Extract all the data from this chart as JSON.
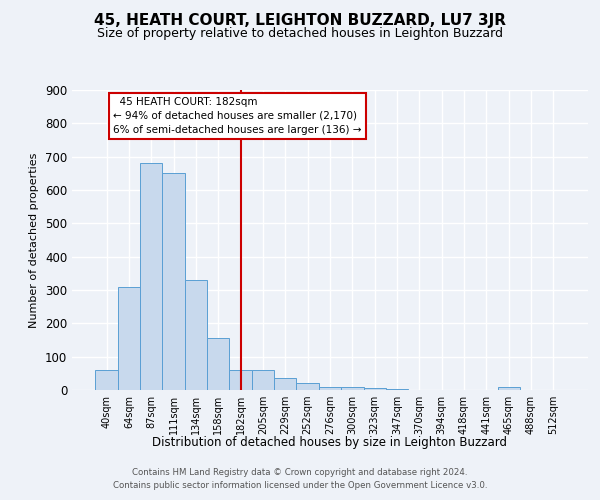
{
  "title": "45, HEATH COURT, LEIGHTON BUZZARD, LU7 3JR",
  "subtitle": "Size of property relative to detached houses in Leighton Buzzard",
  "xlabel": "Distribution of detached houses by size in Leighton Buzzard",
  "ylabel": "Number of detached properties",
  "footnote1": "Contains HM Land Registry data © Crown copyright and database right 2024.",
  "footnote2": "Contains public sector information licensed under the Open Government Licence v3.0.",
  "categories": [
    "40sqm",
    "64sqm",
    "87sqm",
    "111sqm",
    "134sqm",
    "158sqm",
    "182sqm",
    "205sqm",
    "229sqm",
    "252sqm",
    "276sqm",
    "300sqm",
    "323sqm",
    "347sqm",
    "370sqm",
    "394sqm",
    "418sqm",
    "441sqm",
    "465sqm",
    "488sqm",
    "512sqm"
  ],
  "values": [
    60,
    310,
    680,
    650,
    330,
    155,
    60,
    60,
    35,
    20,
    10,
    8,
    5,
    3,
    0,
    0,
    0,
    0,
    8,
    0,
    0
  ],
  "bar_color": "#c8d9ed",
  "bar_edge_color": "#5a9fd4",
  "red_line_index": 6,
  "red_line_label": "45 HEATH COURT: 182sqm",
  "annotation_line2": "← 94% of detached houses are smaller (2,170)",
  "annotation_line3": "6% of semi-detached houses are larger (136) →",
  "ylim": [
    0,
    900
  ],
  "yticks": [
    0,
    100,
    200,
    300,
    400,
    500,
    600,
    700,
    800,
    900
  ],
  "background_color": "#eef2f8",
  "grid_color": "#ffffff",
  "title_fontsize": 11,
  "subtitle_fontsize": 9,
  "annotation_box_color": "#ffffff",
  "annotation_box_edge_color": "#cc0000"
}
